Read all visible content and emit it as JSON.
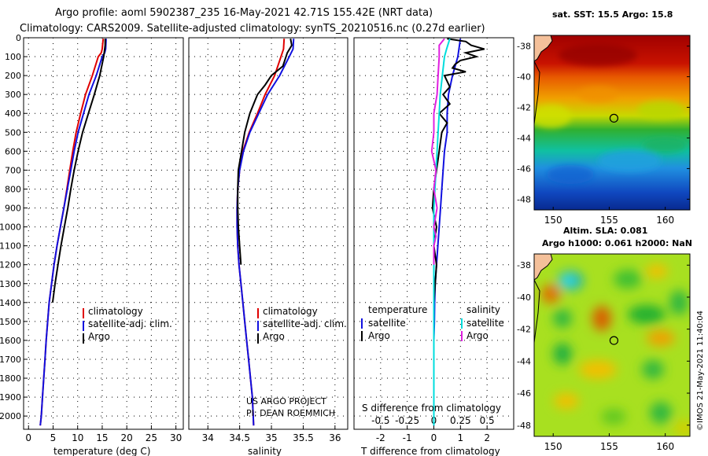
{
  "header": {
    "line1": "Argo profile: aoml 5902387_235 16-May-2021 42.71S 155.42E (NRT data)",
    "line2": "Climatology: CARS2009. Satellite-adjusted climatology: synTS_20210516.nc (0.27d earlier)"
  },
  "credit": {
    "line1": "US ARGO PROJECT",
    "line2": "PI: DEAN ROEMMICH"
  },
  "stamp": "©IMOS 21-May-2021 11:40:04",
  "colors": {
    "clim": "#e00000",
    "sat": "#1010e0",
    "argo": "#000000",
    "sat_s": "#00dddd",
    "argo_s": "#e020e0"
  },
  "chart_data": [
    {
      "id": "temperature",
      "type": "line",
      "xlabel": "temperature (deg C)",
      "ylabel": "",
      "xlim": [
        -1,
        31.5
      ],
      "ylim": [
        2070,
        0
      ],
      "xticks": [
        0,
        5,
        10,
        15,
        20,
        25,
        30
      ],
      "yticks": [
        0,
        100,
        200,
        300,
        400,
        500,
        600,
        700,
        800,
        900,
        1000,
        1100,
        1200,
        1300,
        1400,
        1500,
        1600,
        1700,
        1800,
        1900,
        2000
      ],
      "legend": {
        "position": "lower-right",
        "entries": [
          "climatology",
          "satellite-adj. clim.",
          "Argo"
        ]
      },
      "series": [
        {
          "name": "climatology",
          "color_key": "clim",
          "x": [
            15.2,
            15.0,
            14.8,
            14.2,
            13.0,
            11.6,
            10.6,
            9.7,
            9.0,
            8.4,
            7.8,
            7.2,
            6.5,
            5.8,
            5.2,
            4.7,
            4.2,
            3.9,
            3.6,
            3.35,
            3.1,
            2.85,
            2.6,
            2.4
          ],
          "y": [
            5,
            60,
            80,
            100,
            200,
            300,
            400,
            500,
            600,
            700,
            800,
            900,
            1000,
            1100,
            1200,
            1300,
            1400,
            1500,
            1600,
            1700,
            1800,
            1900,
            2000,
            2050
          ]
        },
        {
          "name": "satellite-adj. clim.",
          "color_key": "sat",
          "x": [
            15.8,
            15.7,
            15.5,
            15.0,
            13.8,
            12.3,
            11.2,
            10.1,
            9.3,
            8.6,
            7.9,
            7.2,
            6.5,
            5.8,
            5.2,
            4.7,
            4.2,
            3.9,
            3.6,
            3.35,
            3.1,
            2.85,
            2.6,
            2.4
          ],
          "y": [
            5,
            60,
            80,
            100,
            200,
            300,
            400,
            500,
            600,
            700,
            800,
            900,
            1000,
            1100,
            1200,
            1300,
            1400,
            1500,
            1600,
            1700,
            1800,
            1900,
            2000,
            2050
          ]
        },
        {
          "name": "Argo",
          "color_key": "argo",
          "x": [
            15.6,
            15.6,
            15.5,
            15.3,
            14.5,
            13.4,
            12.2,
            11.0,
            10.1,
            9.3,
            8.6,
            8.0,
            7.3,
            6.6,
            6.0,
            5.4,
            4.9
          ],
          "y": [
            5,
            40,
            60,
            100,
            200,
            300,
            400,
            500,
            600,
            700,
            800,
            900,
            1000,
            1100,
            1200,
            1300,
            1400
          ]
        }
      ]
    },
    {
      "id": "salinity",
      "type": "line",
      "xlabel": "salinity",
      "ylabel": "",
      "xlim": [
        33.7,
        36.2
      ],
      "ylim": [
        2070,
        0
      ],
      "xticks": [
        34,
        34.5,
        35,
        35.5,
        36
      ],
      "tick_labels": [
        "34",
        "34.5",
        "35",
        "35.5",
        "36"
      ],
      "legend": {
        "position": "lower-right",
        "entries": [
          "climatology",
          "satellite-adj. clim.",
          "Argo"
        ]
      },
      "series": [
        {
          "name": "climatology",
          "color_key": "clim",
          "x": [
            35.2,
            35.19,
            35.15,
            35.05,
            34.9,
            34.78,
            34.65,
            34.55,
            34.5,
            34.47,
            34.46,
            34.46,
            34.47,
            34.49,
            34.52,
            34.55,
            34.58,
            34.61,
            34.64,
            34.67,
            34.7,
            34.72
          ],
          "y": [
            5,
            60,
            100,
            200,
            300,
            400,
            500,
            600,
            700,
            800,
            900,
            1000,
            1100,
            1200,
            1300,
            1400,
            1500,
            1600,
            1700,
            1800,
            1900,
            2050
          ]
        },
        {
          "name": "satellite-adj. clim.",
          "color_key": "sat",
          "x": [
            35.35,
            35.34,
            35.28,
            35.13,
            34.94,
            34.8,
            34.66,
            34.56,
            34.5,
            34.47,
            34.46,
            34.46,
            34.47,
            34.49,
            34.52,
            34.55,
            34.58,
            34.61,
            34.64,
            34.67,
            34.7,
            34.72
          ],
          "y": [
            5,
            60,
            100,
            200,
            300,
            400,
            500,
            600,
            700,
            800,
            900,
            1000,
            1100,
            1200,
            1300,
            1400,
            1500,
            1600,
            1700,
            1800,
            1900,
            2050
          ]
        },
        {
          "name": "Argo",
          "color_key": "argo",
          "x": [
            35.3,
            35.32,
            35.25,
            35.18,
            35.0,
            34.9,
            34.78,
            34.66,
            34.58,
            34.53,
            34.48,
            34.47,
            34.47,
            34.48,
            34.5,
            34.52
          ],
          "y": [
            5,
            40,
            80,
            150,
            200,
            250,
            300,
            400,
            500,
            600,
            700,
            800,
            900,
            1000,
            1100,
            1200
          ]
        }
      ]
    },
    {
      "id": "difference",
      "type": "line",
      "xlabel": "T difference from climatology",
      "ylabel": "",
      "top_axis_label": "S difference from climatology",
      "xlim": [
        -3,
        3
      ],
      "ylim": [
        2070,
        0
      ],
      "xticks": [
        -2,
        -1,
        0,
        1,
        2
      ],
      "s_xlim": [
        -0.75,
        0.75
      ],
      "s_xticks": [
        -0.5,
        -0.25,
        0,
        0.25,
        0.5
      ],
      "s_tick_labels": [
        "-0.5",
        "-0.25",
        "0",
        "0.25",
        "0.5"
      ],
      "legend": {
        "position": "lower-center",
        "temperature_title": "temperature",
        "salinity_title": "salinity",
        "temperature_entries": [
          "satellite",
          "Argo"
        ],
        "salinity_entries": [
          "satellite",
          "Argo"
        ]
      },
      "series": [
        {
          "name": "T satellite",
          "color_key": "sat",
          "x": [
            1.0,
            0.9,
            0.7,
            0.55,
            0.5,
            0.5,
            0.4,
            0.35,
            0.3,
            0.25,
            0.2,
            0.15,
            0.1,
            0.05,
            0.03,
            0.02,
            0.0,
            0.0,
            0.0,
            0.0,
            0.0,
            0.0,
            0.0
          ],
          "y": [
            5,
            100,
            200,
            300,
            400,
            500,
            600,
            700,
            800,
            900,
            1000,
            1100,
            1200,
            1300,
            1400,
            1500,
            1600,
            1700,
            1800,
            1900,
            2000,
            2050,
            2050
          ]
        },
        {
          "name": "T Argo",
          "color_key": "argo",
          "x": [
            0.5,
            1.2,
            1.4,
            1.9,
            1.2,
            1.6,
            1.0,
            0.8,
            0.7,
            1.2,
            0.4,
            0.6,
            0.35,
            0.6,
            0.2,
            0.5,
            0.3,
            0.2,
            0.1,
            0.0,
            -0.05,
            0.1,
            0.0,
            0.1,
            0.05,
            0.0
          ],
          "y": [
            5,
            20,
            40,
            60,
            80,
            100,
            120,
            140,
            160,
            180,
            200,
            260,
            300,
            350,
            400,
            450,
            500,
            600,
            700,
            800,
            900,
            1000,
            1100,
            1200,
            1300,
            1400
          ]
        },
        {
          "name": "S satellite",
          "color_key": "sat_s",
          "x": [
            0.15,
            0.12,
            0.1,
            0.08,
            0.06,
            0.05,
            0.04,
            0.03,
            0.02,
            0.01,
            0.0,
            0.0,
            0.0,
            0.0,
            0.0,
            0.0,
            0.0
          ],
          "y": [
            5,
            60,
            100,
            200,
            300,
            400,
            500,
            600,
            700,
            800,
            900,
            1000,
            1200,
            1400,
            1600,
            1800,
            2050
          ]
        },
        {
          "name": "S Argo",
          "color_key": "argo_s",
          "x": [
            0.1,
            0.05,
            0.05,
            0.04,
            0.03,
            0.0,
            0.0,
            -0.02,
            0.02,
            0.0,
            0.03,
            0.0,
            0.02,
            0.0,
            0.0,
            0.0
          ],
          "y": [
            5,
            40,
            100,
            200,
            300,
            400,
            500,
            600,
            700,
            800,
            900,
            1000,
            1050,
            1100,
            1150,
            1200
          ]
        }
      ]
    },
    {
      "id": "sst-map",
      "type": "heatmap",
      "title": "sat. SST: 15.5 Argo: 15.8",
      "xlim": [
        148.3,
        162.2
      ],
      "ylim": [
        -48.7,
        -37.3
      ],
      "xticks": [
        150,
        155,
        160
      ],
      "yticks": [
        -38,
        -40,
        -42,
        -44,
        -46,
        -48
      ],
      "float_position": {
        "lon": 155.42,
        "lat": -42.71
      }
    },
    {
      "id": "sla-map",
      "type": "heatmap",
      "title_line1": "Altim. SLA: 0.081",
      "title_line2": "Argo h1000: 0.061 h2000: NaN",
      "xlim": [
        148.3,
        162.2
      ],
      "ylim": [
        -48.7,
        -37.3
      ],
      "xticks": [
        150,
        155,
        160
      ],
      "yticks": [
        -38,
        -40,
        -42,
        -44,
        -46,
        -48
      ],
      "float_position": {
        "lon": 155.42,
        "lat": -42.71
      }
    }
  ]
}
